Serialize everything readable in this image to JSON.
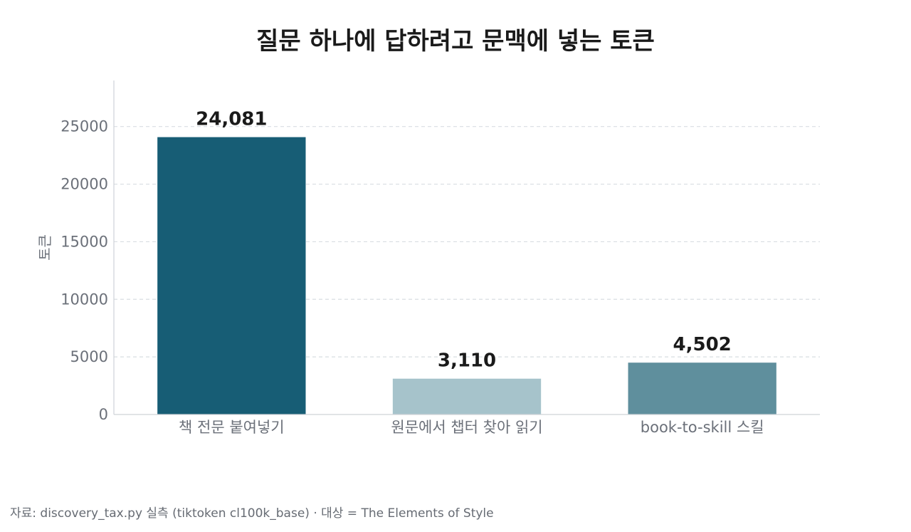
{
  "chart_data": {
    "type": "bar",
    "title": "질문 하나에 답하려고 문맥에 넣는 토큰",
    "xlabel": "",
    "ylabel": "토큰",
    "categories": [
      "책 전문 붙여넣기",
      "원문에서 챕터 찾아 읽기",
      "book-to-skill 스킬"
    ],
    "values": [
      24081,
      3110,
      4502
    ],
    "value_labels": [
      "24,081",
      "3,110",
      "4,502"
    ],
    "colors": [
      "#175d75",
      "#a6c3cb",
      "#5f8f9d"
    ],
    "ylim": [
      0,
      29000
    ],
    "yticks": [
      0,
      5000,
      10000,
      15000,
      20000,
      25000
    ],
    "ytick_labels": [
      "0",
      "5000",
      "10000",
      "15000",
      "20000",
      "25000"
    ],
    "grid": true
  },
  "footer": {
    "source": "자료: discovery_tax.py 실측 (tiktoken cl100k_base) · 대상 = The Elements of Style"
  }
}
